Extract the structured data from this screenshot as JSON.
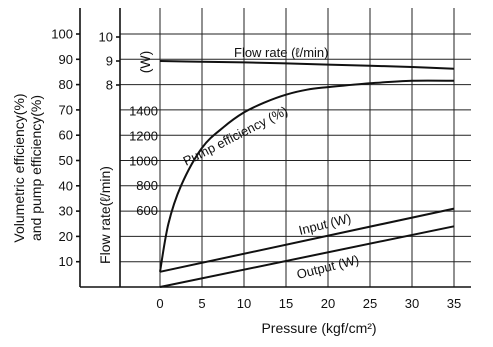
{
  "chart_data": {
    "type": "line",
    "title": "",
    "xlabel": "Pressure (kgf/cm²)",
    "xlim": [
      0,
      35
    ],
    "x_ticks": [
      "0",
      "5",
      "10",
      "15",
      "20",
      "25",
      "30",
      "35"
    ],
    "left_axis": {
      "label_line1": "Volumetric efficiency(%)",
      "label_line2": "and pump efficiency(%)",
      "ylim": [
        0,
        110
      ],
      "ticks": [
        "10",
        "20",
        "30",
        "40",
        "50",
        "60",
        "70",
        "80",
        "90",
        "100"
      ]
    },
    "flow_axis": {
      "label": "Flow rate(ℓ/min)",
      "ticks": [
        "8",
        "9",
        "10"
      ]
    },
    "power_axis": {
      "unit": "(W)",
      "ticks": [
        "600",
        "800",
        "1000",
        "1200",
        "1400"
      ]
    },
    "grid": true,
    "series": [
      {
        "name": "Flow rate (ℓ/min)",
        "axis": "flow",
        "points": [
          [
            0,
            9.0
          ],
          [
            5,
            8.97
          ],
          [
            10,
            8.94
          ],
          [
            15,
            8.9
          ],
          [
            20,
            8.85
          ],
          [
            25,
            8.8
          ],
          [
            30,
            8.75
          ],
          [
            35,
            8.68
          ]
        ]
      },
      {
        "name": "Pump efficiency (%)",
        "axis": "percent",
        "points": [
          [
            0,
            6
          ],
          [
            1,
            25
          ],
          [
            2.5,
            40
          ],
          [
            5,
            55
          ],
          [
            7.5,
            63
          ],
          [
            10,
            69
          ],
          [
            12.5,
            73
          ],
          [
            15,
            76
          ],
          [
            17.5,
            78
          ],
          [
            20,
            79
          ],
          [
            25,
            80.5
          ],
          [
            30,
            81.5
          ],
          [
            35,
            81.5
          ]
        ]
      },
      {
        "name": "Input (W)",
        "axis": "percent",
        "points": [
          [
            0,
            6
          ],
          [
            35,
            31
          ]
        ]
      },
      {
        "name": "Output (W)",
        "axis": "percent",
        "points": [
          [
            0,
            0
          ],
          [
            35,
            24
          ]
        ]
      }
    ]
  }
}
